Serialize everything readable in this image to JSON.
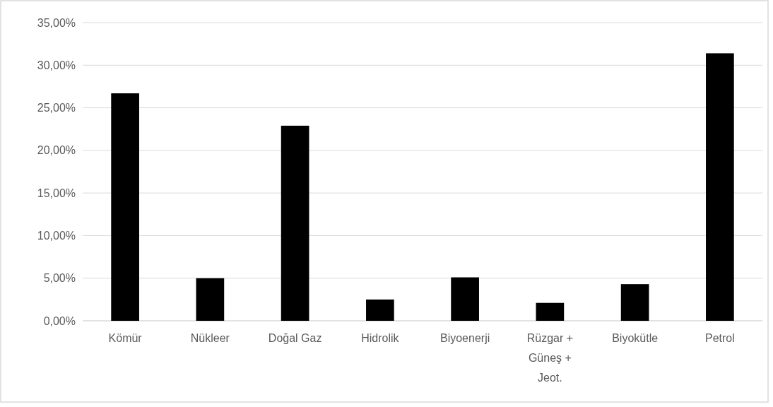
{
  "chart_data": {
    "type": "bar",
    "categories": [
      "Kömür",
      "Nükleer",
      "Doğal Gaz",
      "Hidrolik",
      "Biyoenerji",
      "Rüzgar + Güneş + Jeot.",
      "Biyokütle",
      "Petrol"
    ],
    "values": [
      26.7,
      5.0,
      22.9,
      2.5,
      5.1,
      2.1,
      4.3,
      31.4
    ],
    "color": "#000000",
    "ylim": [
      0,
      35
    ],
    "yticks": [
      {
        "value": 0,
        "label": "0,00%"
      },
      {
        "value": 5,
        "label": "5,00%"
      },
      {
        "value": 10,
        "label": "10,00%"
      },
      {
        "value": 15,
        "label": "15,00%"
      },
      {
        "value": 20,
        "label": "20,00%"
      },
      {
        "value": 25,
        "label": "25,00%"
      },
      {
        "value": 30,
        "label": "30,00%"
      },
      {
        "value": 35,
        "label": "35,00%"
      }
    ],
    "grid": "y"
  }
}
